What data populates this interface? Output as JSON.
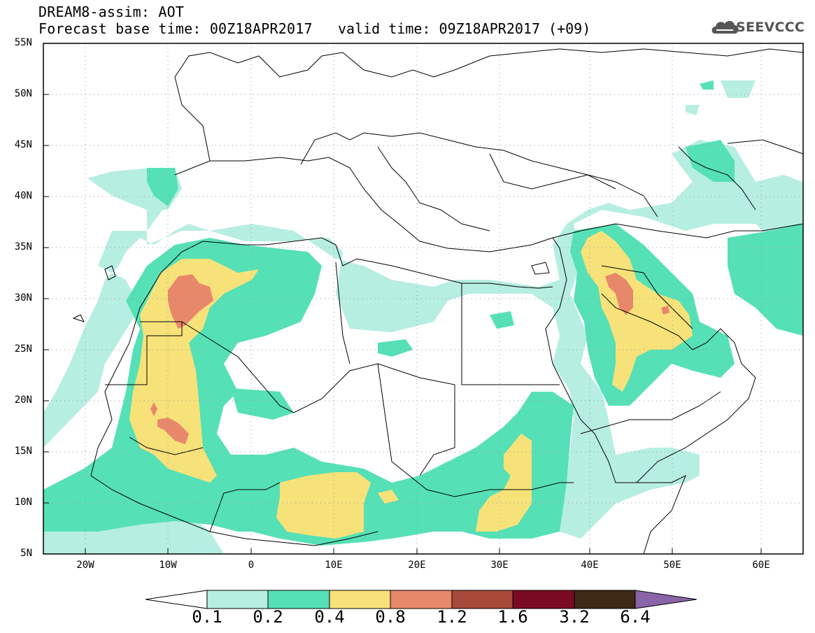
{
  "header": {
    "title": "DREAM8-assim: AOT",
    "base_time": "Forecast base time: 00Z18APR2017",
    "valid_time": "valid time: 09Z18APR2017 (+09)"
  },
  "logo": {
    "text": "SEEVCCC",
    "icon": "cloud-logo-icon"
  },
  "map": {
    "lat_labels": [
      "55N",
      "50N",
      "45N",
      "40N",
      "35N",
      "30N",
      "25N",
      "20N",
      "15N",
      "10N",
      "5N"
    ],
    "lon_labels": [
      "20W",
      "10W",
      "0",
      "10E",
      "20E",
      "30E",
      "40E",
      "50E",
      "60E"
    ]
  },
  "colorbar": {
    "labels": [
      "0.1",
      "0.2",
      "0.4",
      "0.8",
      "1.2",
      "1.6",
      "3.2",
      "6.4"
    ],
    "colors": [
      "#ffffff",
      "#b7eee2",
      "#56e0b6",
      "#f7e27a",
      "#e8886a",
      "#a8493a",
      "#7a0a23",
      "#3d2914",
      "#8a64a8"
    ]
  },
  "colors": {
    "level_0_1": "#b7eee2",
    "level_0_2": "#56e0b6",
    "level_0_4": "#f7e27a",
    "level_0_8": "#e8886a"
  }
}
